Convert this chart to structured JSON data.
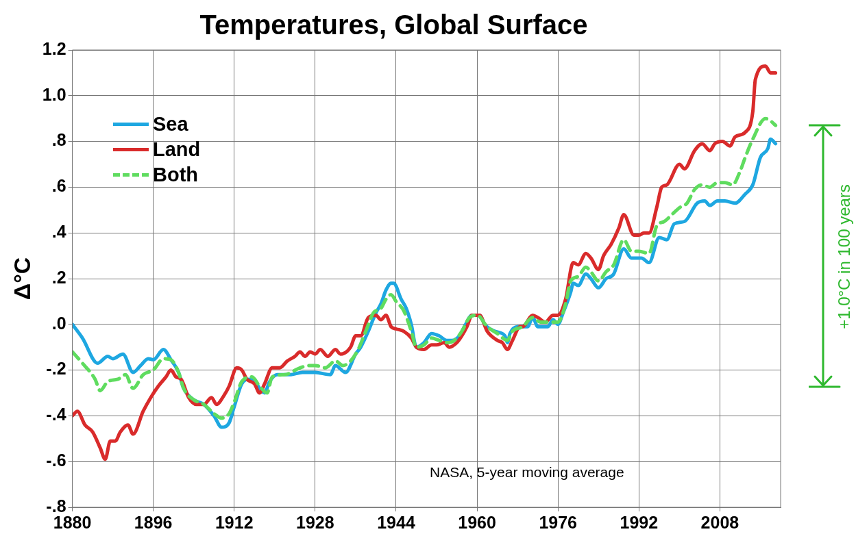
{
  "chart_data": {
    "type": "line",
    "title": "Temperatures, Global Surface",
    "ylabel": "Δ°C",
    "xlim": [
      1880,
      2020
    ],
    "xticks": [
      1880,
      1896,
      1912,
      1928,
      1944,
      1960,
      1976,
      1992,
      2008
    ],
    "ylim": [
      -0.8,
      1.2
    ],
    "yticks": [
      {
        "value": -0.8,
        "label": "-.8"
      },
      {
        "value": -0.6,
        "label": "-.6"
      },
      {
        "value": -0.4,
        "label": "-.4"
      },
      {
        "value": -0.2,
        "label": "-.2"
      },
      {
        "value": 0,
        "label": ".0"
      },
      {
        "value": 0.2,
        "label": ".2"
      },
      {
        "value": 0.4,
        "label": ".4"
      },
      {
        "value": 0.6,
        "label": ".6"
      },
      {
        "value": 0.8,
        "label": ".8"
      },
      {
        "value": 1.0,
        "label": "1.0"
      },
      {
        "value": 1.2,
        "label": "1.2"
      }
    ],
    "grid": true,
    "legend": "top left",
    "marker": "none",
    "annotations": [
      "NASA, 5-year moving average",
      "+1.0°C in 100 years"
    ],
    "series": [
      {
        "name": "Sea",
        "color": "#1ea7e1",
        "line_style": "solid",
        "x": [
          1880,
          1882,
          1885,
          1887,
          1888,
          1890,
          1892,
          1893.5,
          1895,
          1896,
          1898,
          1899.5,
          1901,
          1902,
          1904,
          1906,
          1908,
          1909.5,
          1911,
          1912,
          1913.5,
          1915,
          1916,
          1918,
          1919,
          1920.5,
          1923,
          1925.5,
          1928,
          1931,
          1932,
          1934,
          1936,
          1937,
          1938.5,
          1940,
          1941,
          1942,
          1943,
          1943.5,
          1945,
          1946,
          1947,
          1948,
          1949.5,
          1951,
          1952.5,
          1954,
          1955,
          1956.5,
          1957.5,
          1959,
          1960.5,
          1961.5,
          1963.5,
          1965.5,
          1966,
          1966.5,
          1968,
          1970,
          1971,
          1972,
          1974,
          1975,
          1976,
          1977,
          1978.5,
          1979,
          1980,
          1981.5,
          1982.5,
          1984,
          1985.5,
          1987,
          1989,
          1990.5,
          1992.5,
          1994,
          1996,
          1997.5,
          1999,
          2001,
          2003.5,
          2005,
          2006,
          2007.5,
          2009,
          2011,
          2013,
          2014.5,
          2016,
          2017.5,
          2018,
          2019
        ],
        "values": [
          0.0,
          -0.06,
          -0.17,
          -0.14,
          -0.15,
          -0.13,
          -0.21,
          -0.18,
          -0.15,
          -0.155,
          -0.11,
          -0.155,
          -0.21,
          -0.28,
          -0.33,
          -0.35,
          -0.4,
          -0.45,
          -0.43,
          -0.36,
          -0.26,
          -0.24,
          -0.25,
          -0.3,
          -0.25,
          -0.22,
          -0.22,
          -0.21,
          -0.21,
          -0.22,
          -0.18,
          -0.21,
          -0.13,
          -0.1,
          -0.03,
          0.05,
          0.09,
          0.15,
          0.18,
          0.18,
          0.11,
          0.07,
          0.0,
          -0.1,
          -0.08,
          -0.04,
          -0.05,
          -0.07,
          -0.07,
          -0.05,
          -0.01,
          0.04,
          0.04,
          0.0,
          -0.03,
          -0.05,
          -0.08,
          -0.04,
          -0.01,
          -0.01,
          0.03,
          -0.01,
          -0.01,
          0.02,
          0.0,
          0.05,
          0.14,
          0.18,
          0.17,
          0.22,
          0.2,
          0.16,
          0.2,
          0.22,
          0.33,
          0.29,
          0.29,
          0.27,
          0.38,
          0.37,
          0.44,
          0.45,
          0.53,
          0.54,
          0.52,
          0.54,
          0.54,
          0.53,
          0.57,
          0.61,
          0.73,
          0.77,
          0.81,
          0.79
        ]
      },
      {
        "name": "Land",
        "color": "#d92b2b",
        "line_style": "solid",
        "x": [
          1880,
          1881,
          1882.5,
          1884,
          1885.5,
          1886.5,
          1887.5,
          1888.5,
          1889.5,
          1891,
          1892,
          1894,
          1895.5,
          1897,
          1898.5,
          1899.5,
          1900.5,
          1901.5,
          1903,
          1904.5,
          1906,
          1907.5,
          1908.5,
          1910,
          1911,
          1912.5,
          1913.5,
          1914.5,
          1916,
          1917,
          1918,
          1919.5,
          1921,
          1922.5,
          1924,
          1925,
          1926,
          1927,
          1928,
          1929,
          1930.5,
          1932,
          1933,
          1935,
          1936,
          1937,
          1938.5,
          1940,
          1941,
          1942,
          1943,
          1944,
          1945.5,
          1947,
          1948,
          1949.5,
          1951,
          1952,
          1953.5,
          1954.5,
          1956,
          1957,
          1958,
          1959,
          1960.5,
          1962,
          1964,
          1965,
          1966,
          1967,
          1968.5,
          1969,
          1971,
          1972,
          1973.5,
          1975,
          1976,
          1977.5,
          1979,
          1980,
          1981.5,
          1982.5,
          1984,
          1985,
          1986.5,
          1988,
          1989,
          1991,
          1992,
          1993,
          1994,
          1995.5,
          1996.5,
          1997.5,
          2000,
          2001,
          2003,
          2004.5,
          2006,
          2007,
          2008.5,
          2010,
          2011,
          2013,
          2014.5,
          2015,
          2017,
          2018,
          2019
        ],
        "values": [
          -0.4,
          -0.38,
          -0.44,
          -0.47,
          -0.54,
          -0.59,
          -0.51,
          -0.51,
          -0.47,
          -0.44,
          -0.48,
          -0.38,
          -0.32,
          -0.27,
          -0.23,
          -0.2,
          -0.23,
          -0.24,
          -0.32,
          -0.35,
          -0.35,
          -0.32,
          -0.35,
          -0.31,
          -0.27,
          -0.19,
          -0.2,
          -0.24,
          -0.26,
          -0.3,
          -0.26,
          -0.19,
          -0.19,
          -0.16,
          -0.14,
          -0.12,
          -0.14,
          -0.12,
          -0.13,
          -0.11,
          -0.14,
          -0.11,
          -0.13,
          -0.1,
          -0.05,
          -0.05,
          0.03,
          0.04,
          0.02,
          0.04,
          -0.01,
          -0.02,
          -0.03,
          -0.06,
          -0.1,
          -0.11,
          -0.09,
          -0.09,
          -0.08,
          -0.1,
          -0.08,
          -0.05,
          -0.01,
          0.04,
          0.04,
          -0.03,
          -0.07,
          -0.08,
          -0.11,
          -0.07,
          -0.01,
          -0.01,
          0.04,
          0.03,
          0.01,
          0.04,
          0.04,
          0.11,
          0.27,
          0.26,
          0.31,
          0.29,
          0.24,
          0.3,
          0.35,
          0.42,
          0.48,
          0.39,
          0.39,
          0.4,
          0.4,
          0.51,
          0.6,
          0.61,
          0.7,
          0.68,
          0.76,
          0.79,
          0.76,
          0.79,
          0.8,
          0.78,
          0.82,
          0.84,
          0.93,
          1.07,
          1.13,
          1.1,
          1.1
        ]
      },
      {
        "name": "Both",
        "color": "#5fdc5f",
        "line_style": "dashed",
        "x": [
          1880,
          1882,
          1884.5,
          1885.5,
          1887,
          1889,
          1890.5,
          1892,
          1894,
          1896,
          1898,
          1899.5,
          1901,
          1902,
          1904,
          1906,
          1908,
          1909.5,
          1911,
          1912,
          1913.5,
          1915.5,
          1917,
          1918.5,
          1919.5,
          1922,
          1925,
          1927,
          1928,
          1930,
          1932,
          1933.5,
          1935,
          1936.5,
          1938,
          1939.5,
          1941,
          1942,
          1943,
          1944,
          1945.5,
          1947,
          1948,
          1949.5,
          1951,
          1952.5,
          1954,
          1955.5,
          1957,
          1958.5,
          1960,
          1962,
          1964,
          1966,
          1967,
          1969,
          1971,
          1972.5,
          1974.5,
          1976,
          1977.5,
          1978.5,
          1980,
          1981.5,
          1982.5,
          1984,
          1985.5,
          1987,
          1989,
          1990.5,
          1992,
          1994,
          1995.5,
          1997,
          1998.5,
          2000,
          2001.5,
          2003,
          2004.5,
          2006,
          2007.5,
          2009,
          2010.5,
          2012,
          2013,
          2014.5,
          2017,
          2018,
          2019
        ],
        "values": [
          -0.12,
          -0.17,
          -0.24,
          -0.29,
          -0.25,
          -0.24,
          -0.22,
          -0.28,
          -0.22,
          -0.2,
          -0.15,
          -0.155,
          -0.21,
          -0.28,
          -0.33,
          -0.35,
          -0.39,
          -0.41,
          -0.39,
          -0.34,
          -0.25,
          -0.23,
          -0.27,
          -0.3,
          -0.23,
          -0.22,
          -0.19,
          -0.18,
          -0.18,
          -0.19,
          -0.16,
          -0.18,
          -0.16,
          -0.11,
          -0.03,
          0.05,
          0.07,
          0.11,
          0.13,
          0.1,
          0.06,
          -0.03,
          -0.1,
          -0.09,
          -0.06,
          -0.07,
          -0.08,
          -0.07,
          -0.03,
          0.03,
          0.04,
          -0.01,
          -0.04,
          -0.07,
          -0.03,
          -0.01,
          0.03,
          0.01,
          0.01,
          0.01,
          0.09,
          0.19,
          0.21,
          0.25,
          0.23,
          0.19,
          0.23,
          0.26,
          0.37,
          0.32,
          0.32,
          0.31,
          0.43,
          0.45,
          0.48,
          0.51,
          0.53,
          0.59,
          0.61,
          0.6,
          0.62,
          0.62,
          0.61,
          0.67,
          0.73,
          0.81,
          0.9,
          0.89,
          0.87
        ]
      }
    ]
  }
}
